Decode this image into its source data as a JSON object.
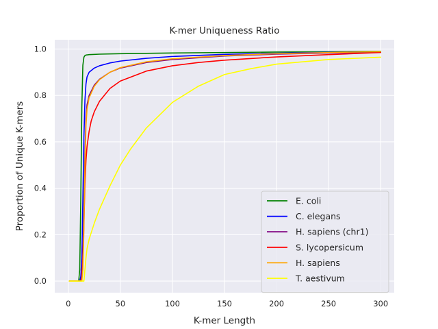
{
  "chart_data": {
    "type": "line",
    "title": "K-mer Uniqueness Ratio",
    "xlabel": "K-mer Length",
    "ylabel": "Proportion of Unique K-mers",
    "xlim": [
      -13,
      313
    ],
    "ylim": [
      -0.05,
      1.04
    ],
    "xticks": [
      0,
      50,
      100,
      150,
      200,
      250,
      300
    ],
    "yticks": [
      0.0,
      0.2,
      0.4,
      0.6,
      0.8,
      1.0
    ],
    "xtick_labels": [
      "0",
      "50",
      "100",
      "150",
      "200",
      "250",
      "300"
    ],
    "ytick_labels": [
      "0.0",
      "0.2",
      "0.4",
      "0.6",
      "0.8",
      "1.0"
    ],
    "grid": true,
    "legend_position": "lower-right",
    "background": "#eaeaf2",
    "series": [
      {
        "name": "E. coli",
        "color": "#008000",
        "x": [
          1,
          10,
          11,
          12,
          13,
          14,
          15,
          16,
          17,
          20,
          30,
          50,
          100,
          150,
          200,
          250,
          300
        ],
        "y": [
          0.0,
          0.0,
          0.05,
          0.35,
          0.75,
          0.93,
          0.965,
          0.972,
          0.974,
          0.976,
          0.978,
          0.98,
          0.983,
          0.985,
          0.987,
          0.988,
          0.99
        ]
      },
      {
        "name": "C. elegans",
        "color": "#0000ff",
        "x": [
          1,
          11,
          12,
          13,
          14,
          15,
          16,
          17,
          18,
          20,
          25,
          30,
          40,
          50,
          75,
          100,
          150,
          200,
          250,
          300
        ],
        "y": [
          0.0,
          0.0,
          0.02,
          0.1,
          0.35,
          0.62,
          0.78,
          0.85,
          0.88,
          0.9,
          0.918,
          0.928,
          0.94,
          0.948,
          0.96,
          0.968,
          0.977,
          0.982,
          0.986,
          0.988
        ]
      },
      {
        "name": "H. sapiens (chr1)",
        "color": "#800080",
        "x": [
          1,
          12,
          13,
          14,
          15,
          16,
          17,
          18,
          20,
          25,
          30,
          40,
          50,
          75,
          100,
          150,
          200,
          250,
          300
        ],
        "y": [
          0.0,
          0.0,
          0.02,
          0.1,
          0.3,
          0.55,
          0.7,
          0.76,
          0.8,
          0.845,
          0.87,
          0.9,
          0.918,
          0.942,
          0.955,
          0.97,
          0.978,
          0.983,
          0.986
        ]
      },
      {
        "name": "S. lycopersicum",
        "color": "#ff0000",
        "x": [
          1,
          12,
          13,
          14,
          15,
          16,
          17,
          18,
          20,
          22,
          25,
          30,
          40,
          50,
          75,
          100,
          125,
          150,
          200,
          250,
          300
        ],
        "y": [
          0.0,
          0.0,
          0.02,
          0.1,
          0.25,
          0.42,
          0.52,
          0.58,
          0.645,
          0.69,
          0.73,
          0.775,
          0.83,
          0.862,
          0.905,
          0.928,
          0.942,
          0.952,
          0.966,
          0.976,
          0.985
        ]
      },
      {
        "name": "H. sapiens",
        "color": "#ffa500",
        "x": [
          1,
          13,
          14,
          15,
          16,
          17,
          18,
          20,
          25,
          30,
          40,
          50,
          75,
          100,
          150,
          200,
          250,
          300
        ],
        "y": [
          0.0,
          0.0,
          0.05,
          0.22,
          0.5,
          0.67,
          0.74,
          0.79,
          0.84,
          0.868,
          0.9,
          0.92,
          0.945,
          0.958,
          0.972,
          0.98,
          0.985,
          0.989
        ]
      },
      {
        "name": "T. aestivum",
        "color": "#ffff00",
        "x": [
          1,
          15,
          16,
          17,
          18,
          20,
          25,
          30,
          40,
          50,
          60,
          75,
          100,
          125,
          150,
          175,
          200,
          250,
          300
        ],
        "y": [
          0.0,
          0.0,
          0.05,
          0.1,
          0.14,
          0.18,
          0.25,
          0.31,
          0.41,
          0.5,
          0.57,
          0.66,
          0.77,
          0.84,
          0.89,
          0.915,
          0.935,
          0.955,
          0.965
        ]
      }
    ]
  }
}
